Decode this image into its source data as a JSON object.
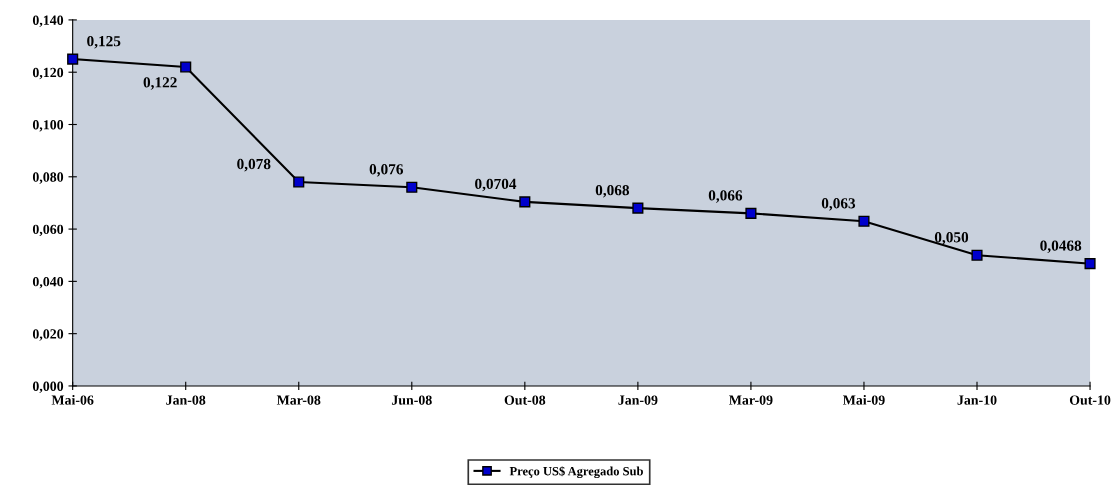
{
  "chart_data": {
    "type": "line",
    "categories": [
      "Mai-06",
      "Jan-08",
      "Mar-08",
      "Jun-08",
      "Out-08",
      "Jan-09",
      "Mar-09",
      "Mai-09",
      "Jan-10",
      "Out-10"
    ],
    "series": [
      {
        "name": "Preço US$ Agregado Sub",
        "color": "#0000cc",
        "values": [
          0.125,
          0.122,
          0.078,
          0.076,
          0.0704,
          0.068,
          0.066,
          0.063,
          0.05,
          0.0468
        ],
        "value_labels": [
          "0,125",
          "0,122",
          "0,078",
          "0,076",
          "0,0704",
          "0,068",
          "0,066",
          "0,063",
          "0,050",
          "0,0468"
        ]
      }
    ],
    "ylim": [
      0,
      0.14
    ],
    "yticks": [
      {
        "value": 0,
        "label": "0,000"
      },
      {
        "value": 0.02,
        "label": "0,020"
      },
      {
        "value": 0.04,
        "label": "0,040"
      },
      {
        "value": 0.06,
        "label": "0,060"
      },
      {
        "value": 0.08,
        "label": "0,080"
      },
      {
        "value": 0.1,
        "label": "0,100"
      },
      {
        "value": 0.12,
        "label": "0,120"
      },
      {
        "value": 0.14,
        "label": "0,140"
      }
    ],
    "grid": false,
    "legend": "bottom",
    "marker": "square",
    "line_style": "solid"
  }
}
